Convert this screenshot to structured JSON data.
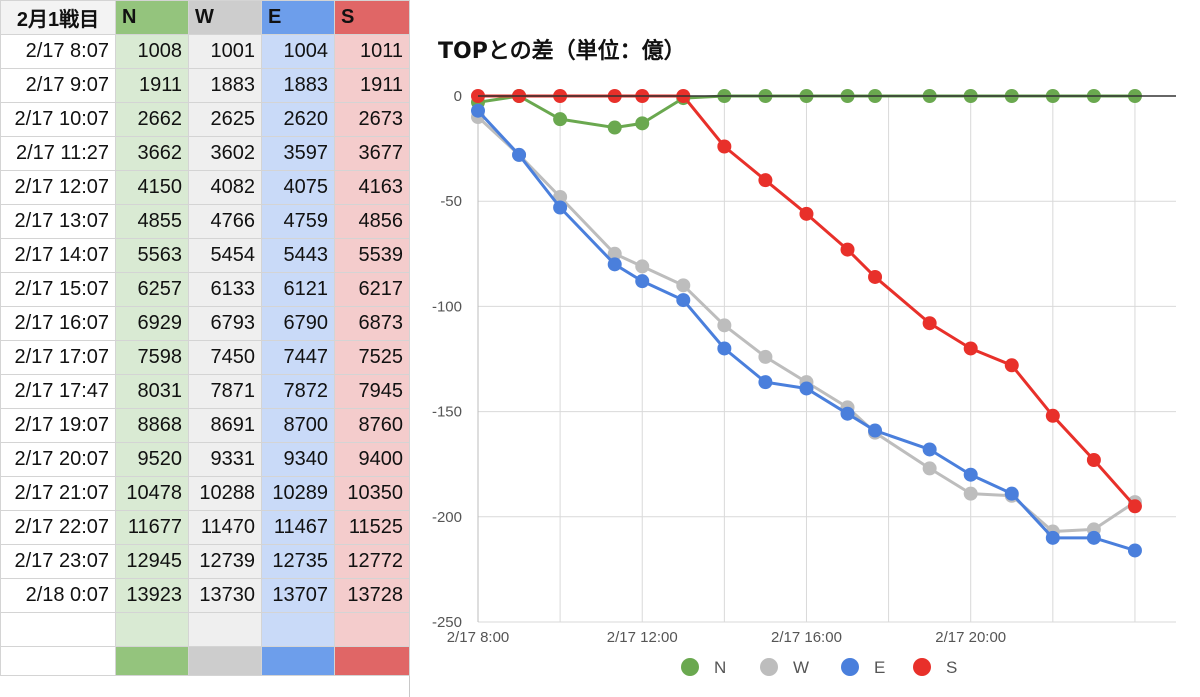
{
  "sheet": {
    "header": [
      "2月1戦目",
      "N",
      "W",
      "E",
      "S"
    ],
    "rows": [
      [
        "2/17 8:07",
        "1008",
        "1001",
        "1004",
        "1011"
      ],
      [
        "2/17 9:07",
        "1911",
        "1883",
        "1883",
        "1911"
      ],
      [
        "2/17 10:07",
        "2662",
        "2625",
        "2620",
        "2673"
      ],
      [
        "2/17 11:27",
        "3662",
        "3602",
        "3597",
        "3677"
      ],
      [
        "2/17 12:07",
        "4150",
        "4082",
        "4075",
        "4163"
      ],
      [
        "2/17 13:07",
        "4855",
        "4766",
        "4759",
        "4856"
      ],
      [
        "2/17 14:07",
        "5563",
        "5454",
        "5443",
        "5539"
      ],
      [
        "2/17 15:07",
        "6257",
        "6133",
        "6121",
        "6217"
      ],
      [
        "2/17 16:07",
        "6929",
        "6793",
        "6790",
        "6873"
      ],
      [
        "2/17 17:07",
        "7598",
        "7450",
        "7447",
        "7525"
      ],
      [
        "2/17 17:47",
        "8031",
        "7871",
        "7872",
        "7945"
      ],
      [
        "2/17 19:07",
        "8868",
        "8691",
        "8700",
        "8760"
      ],
      [
        "2/17 20:07",
        "9520",
        "9331",
        "9340",
        "9400"
      ],
      [
        "2/17 21:07",
        "10478",
        "10288",
        "10289",
        "10350"
      ],
      [
        "2/17 22:07",
        "11677",
        "11470",
        "11467",
        "11525"
      ],
      [
        "2/17 23:07",
        "12945",
        "12739",
        "12735",
        "12772"
      ],
      [
        "2/18 0:07",
        "13923",
        "13730",
        "13707",
        "13728"
      ]
    ],
    "colors": {
      "N": "#94c47d",
      "W": "#cdcdcd",
      "E": "#6d9eeb",
      "S": "#e06666"
    }
  },
  "chart_data": {
    "type": "line",
    "title": "TOPとの差（単位：億）",
    "ylim": [
      -250,
      0
    ],
    "yticks": [
      0,
      -50,
      -100,
      -150,
      -200,
      -250
    ],
    "xlim": [
      8,
      25
    ],
    "xticks": [
      {
        "value": 8,
        "label": "2/17 8:00"
      },
      {
        "value": 12,
        "label": "2/17 12:00"
      },
      {
        "value": 16,
        "label": "2/17 16:00"
      },
      {
        "value": 20,
        "label": "2/17 20:00"
      }
    ],
    "grid": true,
    "legend_position": "bottom",
    "x": [
      8.0,
      9.0,
      10.0,
      11.33,
      12.0,
      13.0,
      14.0,
      15.0,
      16.0,
      17.0,
      17.67,
      19.0,
      20.0,
      21.0,
      22.0,
      23.0,
      24.0
    ],
    "series": [
      {
        "name": "N",
        "color": "#6aa84f",
        "values": [
          -3,
          0,
          -11,
          -15,
          -13,
          -1,
          0,
          0,
          0,
          0,
          0,
          0,
          0,
          0,
          0,
          0,
          0
        ]
      },
      {
        "name": "W",
        "color": "#bdbdbd",
        "values": [
          -10,
          -28,
          -48,
          -75,
          -81,
          -90,
          -109,
          -124,
          -136,
          -148,
          -160,
          -177,
          -189,
          -190,
          -207,
          -206,
          -193
        ]
      },
      {
        "name": "E",
        "color": "#4a7fdc",
        "values": [
          -7,
          -28,
          -53,
          -80,
          -88,
          -97,
          -120,
          -136,
          -139,
          -151,
          -159,
          -168,
          -180,
          -189,
          -210,
          -210,
          -216
        ]
      },
      {
        "name": "S",
        "color": "#e8302a",
        "values": [
          0,
          0,
          0,
          0,
          0,
          0,
          -24,
          -40,
          -56,
          -73,
          -86,
          -108,
          -120,
          -128,
          -152,
          -173,
          -195
        ]
      }
    ]
  }
}
